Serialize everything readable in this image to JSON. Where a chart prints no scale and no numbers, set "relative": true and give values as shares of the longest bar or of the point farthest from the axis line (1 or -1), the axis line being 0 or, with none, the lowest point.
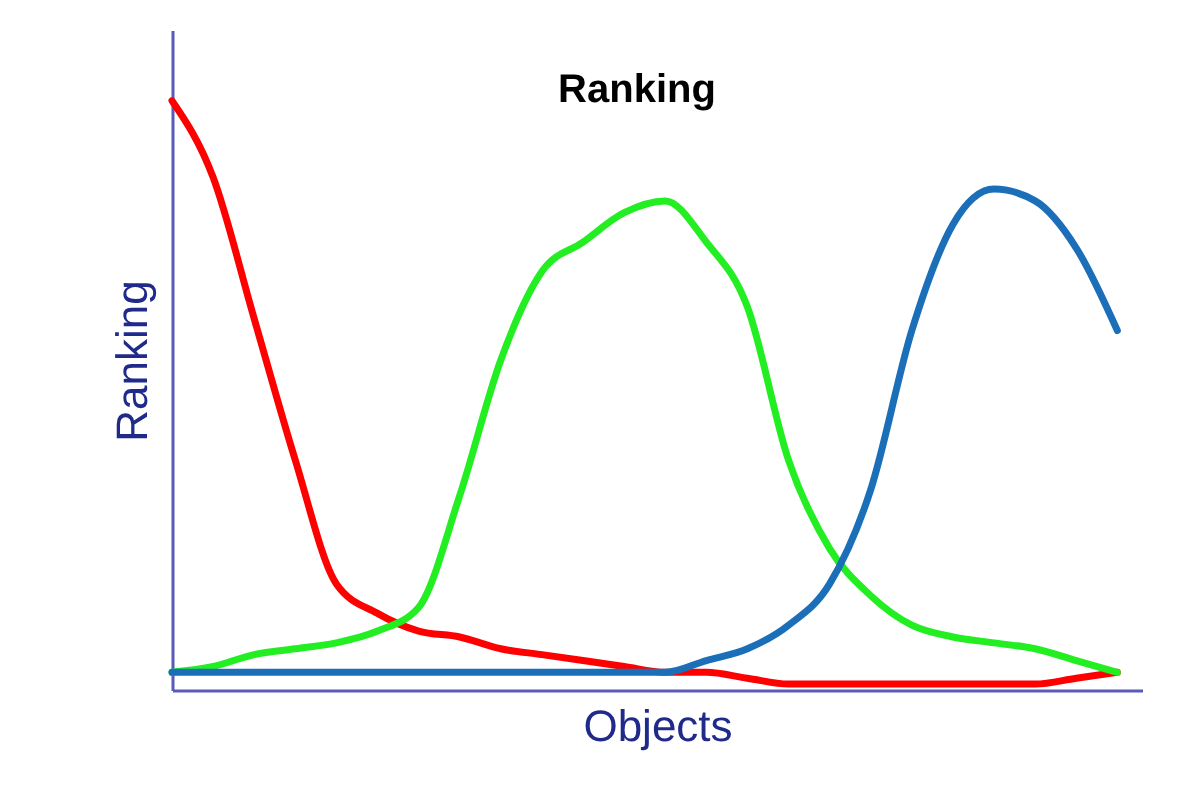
{
  "chart_data": {
    "type": "line",
    "title": "Ranking",
    "xlabel": "Objects",
    "ylabel": "Ranking",
    "relative": true,
    "tick_labels": false,
    "grid": false,
    "legend": false,
    "marker": "none",
    "line_style": "solid",
    "categories": [
      null,
      null,
      null,
      null,
      null,
      null,
      null,
      null,
      null,
      null,
      null,
      null,
      null,
      null,
      null,
      null,
      null,
      null,
      null,
      null,
      null,
      null,
      null,
      null
    ],
    "series": [
      {
        "color": "#ff0000",
        "values": [
          1,
          0.87,
          0.63,
          0.39,
          0.18,
          0.13,
          0.1,
          0.09,
          0.07,
          0.06,
          0.05,
          0.04,
          0.03,
          0.03,
          0.02,
          0.01,
          0.01,
          0.01,
          0.01,
          0.01,
          0.01,
          0.01,
          0.02,
          0.03
        ]
      },
      {
        "color": "#22ee22",
        "values": [
          0.03,
          0.04,
          0.06,
          0.07,
          0.08,
          0.1,
          0.14,
          0.33,
          0.56,
          0.71,
          0.76,
          0.81,
          0.83,
          0.76,
          0.65,
          0.39,
          0.24,
          0.16,
          0.11,
          0.09,
          0.08,
          0.07,
          0.05,
          0.03
        ]
      },
      {
        "color": "#1a6fb8",
        "values": [
          0.03,
          0.03,
          0.03,
          0.03,
          0.03,
          0.03,
          0.03,
          0.03,
          0.03,
          0.03,
          0.03,
          0.03,
          0.03,
          0.05,
          0.07,
          0.11,
          0.18,
          0.34,
          0.61,
          0.79,
          0.85,
          0.83,
          0.75,
          0.61
        ]
      }
    ]
  }
}
